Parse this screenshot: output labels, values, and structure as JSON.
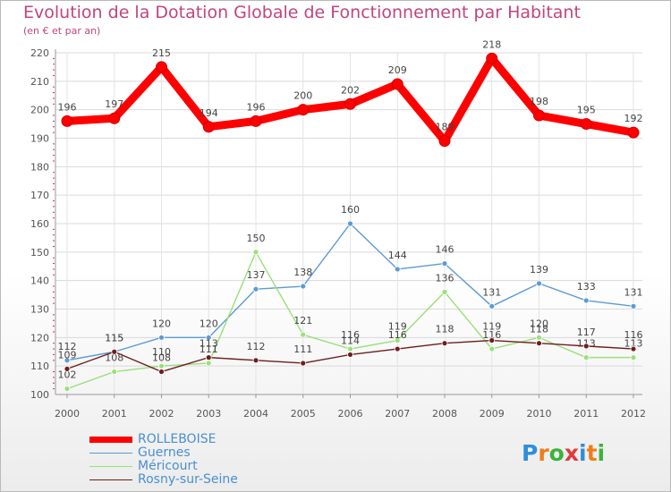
{
  "header": {
    "title": "Evolution de la Dotation Globale de Fonctionnement par Habitant",
    "subtitle": "(en € et par an)"
  },
  "logo": {
    "text": "Proxiti",
    "letter_colors": [
      "#2f8fd8",
      "#f07d1a",
      "#3bb33b",
      "#e23a3a",
      "#2f8fd8",
      "#f07d1a",
      "#3bb33b"
    ]
  },
  "chart_data": {
    "type": "line",
    "title": "Evolution de la Dotation Globale de Fonctionnement par Habitant",
    "subtitle": "(en € et par an)",
    "xlabel": "",
    "ylabel": "",
    "x": [
      "2000",
      "2001",
      "2002",
      "2003",
      "2004",
      "2005",
      "2006",
      "2007",
      "2008",
      "2009",
      "2010",
      "2011",
      "2012"
    ],
    "ylim": [
      100,
      220
    ],
    "yticks": [
      100,
      110,
      120,
      130,
      140,
      150,
      160,
      170,
      180,
      190,
      200,
      210,
      220
    ],
    "grid": true,
    "legend": "bottom-left",
    "series": [
      {
        "name": "ROLLEBOISE",
        "color": "#ff0000",
        "values": [
          196,
          197,
          215,
          194,
          196,
          200,
          202,
          209,
          189,
          218,
          198,
          195,
          192
        ],
        "labels": [
          "196",
          "197",
          "215",
          "194",
          "196",
          "200",
          "202",
          "209",
          "189",
          "218",
          "198",
          "195",
          "192"
        ]
      },
      {
        "name": "Guernes",
        "color": "#5b9bd5",
        "values": [
          112,
          115,
          120,
          120,
          137,
          138,
          160,
          144,
          146,
          131,
          139,
          133,
          131
        ],
        "labels": [
          "112",
          "115",
          "120",
          "120",
          "137",
          "138",
          "160",
          "144",
          "146",
          "131",
          "139",
          "133",
          "131"
        ]
      },
      {
        "name": "Méricourt",
        "color": "#99e07a",
        "values": [
          102,
          108,
          110,
          111,
          150,
          121,
          116,
          119,
          136,
          116,
          120,
          113,
          113
        ],
        "labels": [
          "102",
          "108",
          "110",
          "111",
          "150",
          "121",
          "116",
          "119",
          "136",
          "116",
          "120",
          "113",
          "113"
        ]
      },
      {
        "name": "Rosny-sur-Seine",
        "color": "#6e1d1d",
        "values": [
          109,
          115,
          108,
          113,
          112,
          111,
          114,
          116,
          118,
          119,
          118,
          117,
          116
        ],
        "labels": [
          "109",
          "115",
          "108",
          "113",
          "112",
          "111",
          "114",
          "116",
          "118",
          "119",
          "118",
          "117",
          "116"
        ]
      }
    ]
  }
}
